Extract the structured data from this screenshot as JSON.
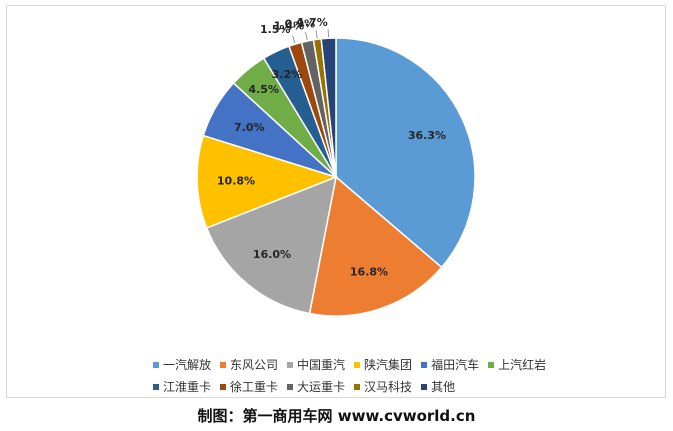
{
  "chart_data": {
    "type": "pie",
    "categories": [
      "一汽解放",
      "东风公司",
      "中国重汽",
      "陕汽集团",
      "福田汽车",
      "上汽红岩",
      "江淮重卡",
      "徐工重卡",
      "大运重卡",
      "汉马科技",
      "其他"
    ],
    "values": [
      36.3,
      16.8,
      16.0,
      10.8,
      7.0,
      4.5,
      3.2,
      1.5,
      1.4,
      0.9,
      1.7
    ],
    "labels": [
      "36.3%",
      "16.8%",
      "16.0%",
      "10.8%",
      "7.0%",
      "4.5%",
      "3.2%",
      "1.5%",
      "1.4%",
      "0.9%",
      "1.7%"
    ],
    "colors": [
      "#5b9bd5",
      "#ed7d31",
      "#a5a5a5",
      "#ffc000",
      "#4472c4",
      "#70ad47",
      "#255e91",
      "#9e480e",
      "#636363",
      "#997300",
      "#264478"
    ],
    "legend_position": "bottom"
  },
  "caption": "制图：第一商用车网 www.cvworld.cn"
}
